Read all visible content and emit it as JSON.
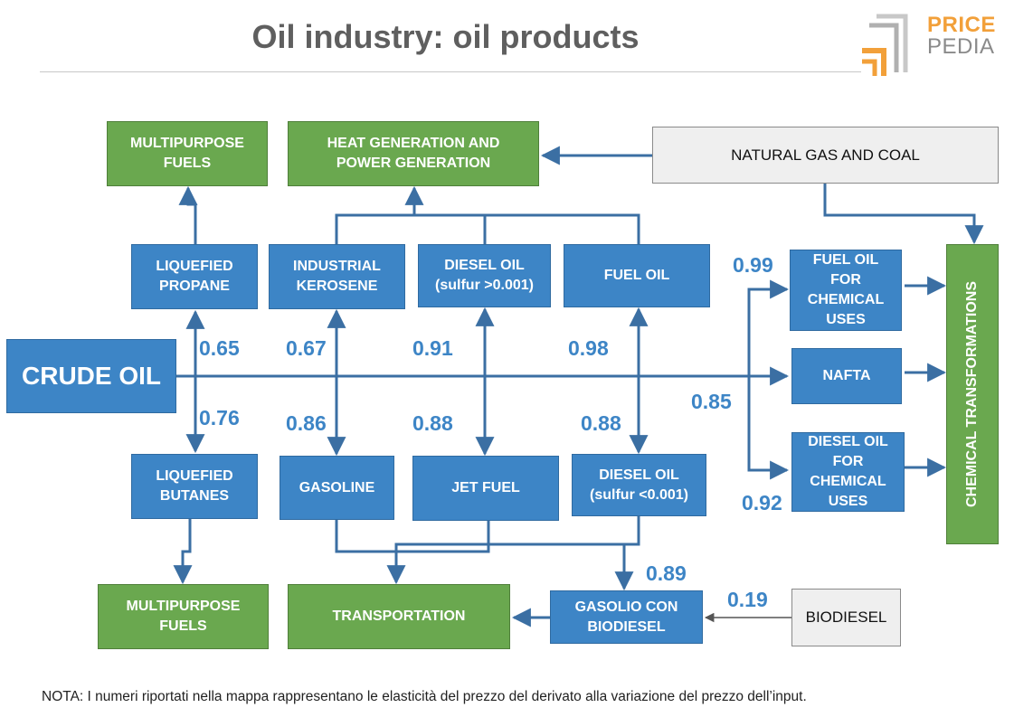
{
  "title": "Oil industry: oil products",
  "logo": {
    "line1": "PRICE",
    "line2": "PEDIA"
  },
  "colors": {
    "green": "#6aa84f",
    "blue": "#3d85c6",
    "gray": "#efefef",
    "line": "#3b6fa3",
    "label": "#3d85c6"
  },
  "nodes": {
    "multipurpose_fuels_top": "MULTIPURPOSE\nFUELS",
    "heat_power": "HEAT GENERATION AND\nPOWER GENERATION",
    "natural_gas_coal": "NATURAL GAS AND COAL",
    "liquefied_propane": "LIQUEFIED\nPROPANE",
    "industrial_kerosene": "INDUSTRIAL\nKEROSENE",
    "diesel_oil_high": "DIESEL OIL\n(sulfur >0.001)",
    "fuel_oil": "FUEL OIL",
    "crude_oil": "CRUDE OIL",
    "fuel_oil_chemical": "FUEL OIL\nFOR\nCHEMICAL\nUSES",
    "nafta": "NAFTA",
    "diesel_oil_chemical": "DIESEL OIL\nFOR\nCHEMICAL\nUSES",
    "chemical_transformations": "CHEMICAL TRANSFORMATIONS",
    "liquefied_butanes": "LIQUEFIED\nBUTANES",
    "gasoline": "GASOLINE",
    "jet_fuel": "JET FUEL",
    "diesel_oil_low": "DIESEL OIL\n(sulfur <0.001)",
    "multipurpose_fuels_bottom": "MULTIPURPOSE\nFUELS",
    "transportation": "TRANSPORTATION",
    "gasolio_biodiesel": "GASOLIO CON\nBIODIESEL",
    "biodiesel": "BIODIESEL"
  },
  "elasticities": {
    "propane": "0.65",
    "kerosene": "0.67",
    "diesel_high": "0.91",
    "fuel_oil": "0.98",
    "butanes": "0.76",
    "gasoline": "0.86",
    "jet_fuel": "0.88",
    "diesel_low": "0.88",
    "fuel_oil_chemical": "0.99",
    "nafta": "0.85",
    "diesel_oil_chemical": "0.92",
    "gasolio_biodiesel": "0.89",
    "biodiesel": "0.19"
  },
  "note": "NOTA: I numeri riportati nella mappa rappresentano le elasticità del prezzo del derivato alla variazione del prezzo dell’input."
}
